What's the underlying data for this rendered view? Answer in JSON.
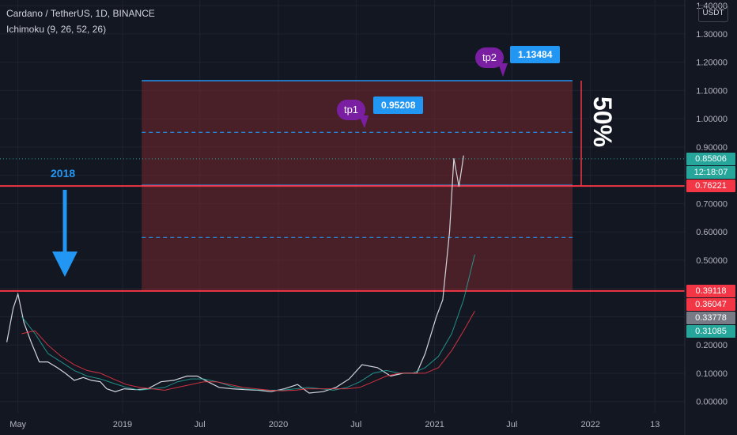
{
  "header": {
    "title": "Cardano / TetherUS, 1D, BINANCE",
    "indicator": "Ichimoku (9, 26, 52, 26)"
  },
  "currency_label": "USDT",
  "annotations": {
    "year_label": "2018",
    "percent_label": "50%",
    "tp1": {
      "name": "tp1",
      "value": "0.95208"
    },
    "tp2": {
      "name": "tp2",
      "value": 1.13484
    }
  },
  "price_labels": [
    {
      "text": "0.85806",
      "bg": "#26a69a",
      "fg": "#ffffff"
    },
    {
      "text": "12:18:07",
      "bg": "#26a69a",
      "fg": "#ffffff"
    },
    {
      "text": "0.76221",
      "bg": "#f23645",
      "fg": "#ffffff"
    },
    {
      "text": "0.39118",
      "bg": "#f23645",
      "fg": "#ffffff"
    },
    {
      "text": "0.36047",
      "bg": "#f23645",
      "fg": "#ffffff"
    },
    {
      "text": "0.33778",
      "bg": "#787b86",
      "fg": "#ffffff"
    },
    {
      "text": "0.31085",
      "bg": "#26a69a",
      "fg": "#ffffff"
    }
  ],
  "colors": {
    "background": "#131722",
    "grid": "#1f2330",
    "axis_text": "#b2b5be",
    "support": "#f23645",
    "target": "#2196f3",
    "box": "rgba(120,40,45,0.55)",
    "cloud_a": "#26a69a",
    "cloud_b": "#f23645",
    "price": "#d1d4dc"
  },
  "chart_data": {
    "type": "line",
    "title": "Cardano / TetherUS, 1D, BINANCE",
    "x_ticks": [
      "May",
      "2019",
      "Jul",
      "2020",
      "Jul",
      "2021",
      "Jul",
      "2022",
      "13"
    ],
    "y_ticks": [
      0.0,
      0.1,
      0.2,
      0.3,
      0.4,
      0.5,
      0.6,
      0.7,
      0.8,
      0.9,
      1.0,
      1.1,
      1.2,
      1.3,
      1.4
    ],
    "y_tick_labels": [
      "0.00000",
      "0.10000",
      "0.20000",
      "0.30000",
      "0.40000",
      "0.50000",
      "0.60000",
      "0.70000",
      "0.80000",
      "0.90000",
      "1.00000",
      "1.10000",
      "1.20000",
      "1.30000",
      "1.40000"
    ],
    "ylim": [
      -0.04,
      1.42
    ],
    "x_range": [
      "2018-03-20",
      "2022-08-10"
    ],
    "horizontal_levels": [
      {
        "name": "support-2018-high",
        "value": 0.39118,
        "style": "solid"
      },
      {
        "name": "resistance",
        "value": 0.76221,
        "style": "solid"
      },
      {
        "name": "tp1",
        "value": 0.95208,
        "style": "dashed"
      },
      {
        "name": "mid",
        "value": 0.58,
        "style": "dashed"
      }
    ],
    "target_box": {
      "x_start": "2019-02-15",
      "x_end": "2021-11-20",
      "y_low": 0.39118,
      "y_high": 1.13484
    },
    "series": [
      {
        "name": "ADAUSDT",
        "x": [
          "2018-04-05",
          "2018-04-20",
          "2018-05-01",
          "2018-05-15",
          "2018-06-01",
          "2018-06-20",
          "2018-07-10",
          "2018-08-01",
          "2018-08-20",
          "2018-09-10",
          "2018-10-01",
          "2018-10-20",
          "2018-11-10",
          "2018-11-25",
          "2018-12-15",
          "2019-01-05",
          "2019-02-01",
          "2019-03-01",
          "2019-04-01",
          "2019-05-01",
          "2019-06-01",
          "2019-06-25",
          "2019-07-20",
          "2019-08-15",
          "2019-09-15",
          "2019-10-15",
          "2019-11-15",
          "2019-12-15",
          "2020-01-15",
          "2020-02-15",
          "2020-03-13",
          "2020-04-15",
          "2020-05-15",
          "2020-06-15",
          "2020-07-15",
          "2020-08-20",
          "2020-09-20",
          "2020-10-20",
          "2020-11-20",
          "2020-12-10",
          "2021-01-05",
          "2021-01-20",
          "2021-02-05",
          "2021-02-15",
          "2021-02-27",
          "2021-03-10"
        ],
        "values": [
          0.21,
          0.33,
          0.38,
          0.28,
          0.21,
          0.14,
          0.14,
          0.12,
          0.1,
          0.075,
          0.085,
          0.075,
          0.07,
          0.045,
          0.035,
          0.045,
          0.042,
          0.045,
          0.07,
          0.075,
          0.09,
          0.09,
          0.07,
          0.05,
          0.045,
          0.042,
          0.04,
          0.035,
          0.045,
          0.06,
          0.03,
          0.035,
          0.05,
          0.08,
          0.13,
          0.12,
          0.09,
          0.1,
          0.1,
          0.17,
          0.3,
          0.36,
          0.6,
          0.86,
          0.76,
          0.87
        ]
      },
      {
        "name": "cloud-a",
        "x": [
          "2018-05-10",
          "2018-06-10",
          "2018-07-10",
          "2018-08-10",
          "2018-09-10",
          "2018-10-10",
          "2018-11-10",
          "2018-12-10",
          "2019-01-10",
          "2019-02-10",
          "2019-03-10",
          "2019-04-10",
          "2019-05-10",
          "2019-06-10",
          "2019-07-10",
          "2019-08-10",
          "2019-09-10",
          "2019-10-10",
          "2019-11-10",
          "2019-12-10",
          "2020-01-10",
          "2020-02-10",
          "2020-03-10",
          "2020-04-10",
          "2020-05-10",
          "2020-06-10",
          "2020-07-10",
          "2020-08-10",
          "2020-09-10",
          "2020-10-10",
          "2020-11-10",
          "2020-12-10",
          "2021-01-10",
          "2021-02-10",
          "2021-03-10",
          "2021-04-05"
        ],
        "values": [
          0.3,
          0.24,
          0.17,
          0.14,
          0.11,
          0.09,
          0.08,
          0.065,
          0.05,
          0.04,
          0.045,
          0.05,
          0.07,
          0.08,
          0.08,
          0.07,
          0.055,
          0.045,
          0.042,
          0.04,
          0.04,
          0.045,
          0.05,
          0.045,
          0.04,
          0.05,
          0.07,
          0.1,
          0.11,
          0.1,
          0.1,
          0.12,
          0.16,
          0.24,
          0.36,
          0.52
        ]
      },
      {
        "name": "cloud-b",
        "x": [
          "2018-05-10",
          "2018-06-10",
          "2018-07-10",
          "2018-08-10",
          "2018-09-10",
          "2018-10-10",
          "2018-11-10",
          "2018-12-10",
          "2019-01-10",
          "2019-02-10",
          "2019-03-10",
          "2019-04-10",
          "2019-05-10",
          "2019-06-10",
          "2019-07-10",
          "2019-08-10",
          "2019-09-10",
          "2019-10-10",
          "2019-11-10",
          "2019-12-10",
          "2020-01-10",
          "2020-02-10",
          "2020-03-10",
          "2020-04-10",
          "2020-05-10",
          "2020-06-10",
          "2020-07-10",
          "2020-08-10",
          "2020-09-10",
          "2020-10-10",
          "2020-11-10",
          "2020-12-10",
          "2021-01-10",
          "2021-02-10",
          "2021-03-10",
          "2021-04-05"
        ],
        "values": [
          0.24,
          0.25,
          0.2,
          0.16,
          0.13,
          0.11,
          0.1,
          0.08,
          0.06,
          0.05,
          0.045,
          0.04,
          0.05,
          0.06,
          0.07,
          0.07,
          0.06,
          0.05,
          0.045,
          0.04,
          0.038,
          0.04,
          0.045,
          0.045,
          0.045,
          0.045,
          0.05,
          0.07,
          0.09,
          0.1,
          0.1,
          0.1,
          0.12,
          0.18,
          0.25,
          0.32
        ]
      }
    ]
  }
}
